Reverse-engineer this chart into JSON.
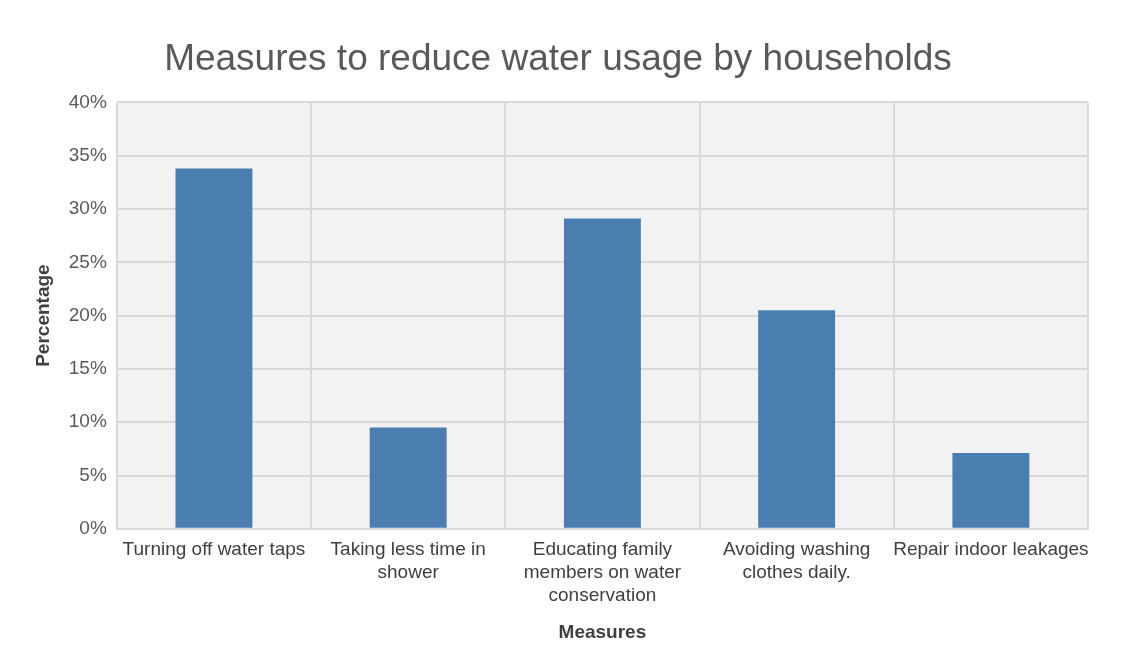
{
  "chart_data": {
    "type": "bar",
    "title": "Measures to reduce water usage by households",
    "xlabel": "Measures",
    "ylabel": "Percentage",
    "categories": [
      "Turning off water taps",
      "Taking less time in shower",
      "Educating family members on water conservation",
      "Avoiding washing clothes daily.",
      "Repair indoor leakages"
    ],
    "values": [
      33.8,
      9.5,
      29.1,
      20.5,
      7.1
    ],
    "color": "#4a7eb0",
    "ylim": [
      0,
      40
    ],
    "yticks": [
      {
        "value": 0,
        "label": "0%"
      },
      {
        "value": 5,
        "label": "5%"
      },
      {
        "value": 10,
        "label": "10%"
      },
      {
        "value": 15,
        "label": "15%"
      },
      {
        "value": 20,
        "label": "20%"
      },
      {
        "value": 25,
        "label": "25%"
      },
      {
        "value": 30,
        "label": "30%"
      },
      {
        "value": 35,
        "label": "35%"
      },
      {
        "value": 40,
        "label": "40%"
      }
    ],
    "grid": true,
    "legend": false
  }
}
